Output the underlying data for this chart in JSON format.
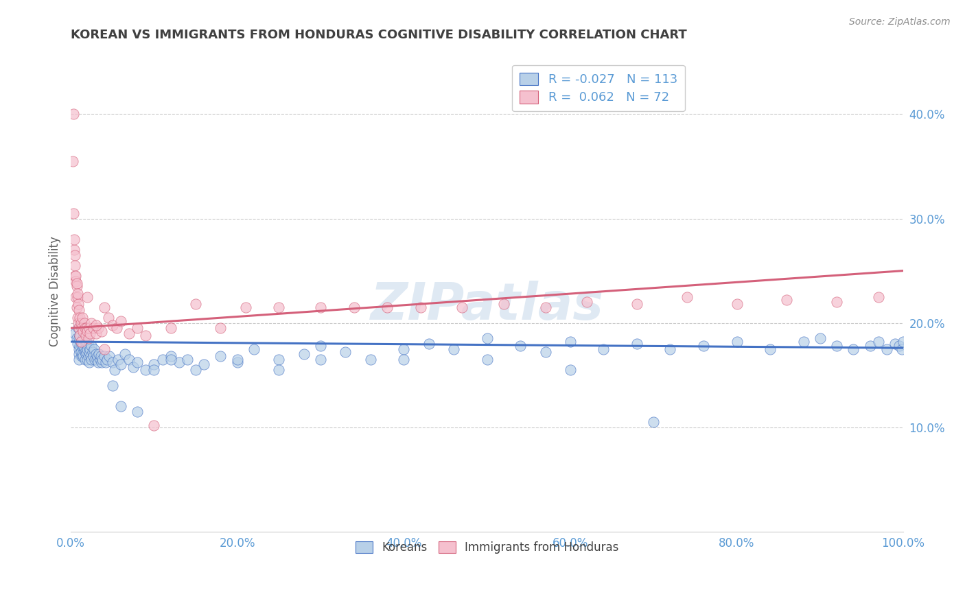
{
  "title": "KOREAN VS IMMIGRANTS FROM HONDURAS COGNITIVE DISABILITY CORRELATION CHART",
  "source": "Source: ZipAtlas.com",
  "ylabel": "Cognitive Disability",
  "watermark": "ZIPatlas",
  "legend_blue_R": "-0.027",
  "legend_blue_N": "113",
  "legend_pink_R": "0.062",
  "legend_pink_N": "72",
  "blue_scatter_color": "#b8d0e8",
  "pink_scatter_color": "#f5c0ce",
  "blue_line_color": "#4472c4",
  "pink_line_color": "#d4607a",
  "axis_tick_color": "#5b9bd5",
  "title_color": "#404040",
  "background_color": "#ffffff",
  "grid_color": "#cccccc",
  "xlim": [
    0.0,
    1.0
  ],
  "ylim": [
    0.0,
    0.46
  ],
  "xticks": [
    0.0,
    0.2,
    0.4,
    0.6,
    0.8,
    1.0
  ],
  "xticklabels": [
    "0.0%",
    "20.0%",
    "40.0%",
    "60.0%",
    "80.0%",
    "100.0%"
  ],
  "yticks": [
    0.1,
    0.2,
    0.3,
    0.4
  ],
  "yticklabels": [
    "10.0%",
    "20.0%",
    "30.0%",
    "40.0%"
  ],
  "blue_x": [
    0.005,
    0.007,
    0.008,
    0.009,
    0.01,
    0.01,
    0.01,
    0.01,
    0.011,
    0.011,
    0.012,
    0.012,
    0.013,
    0.013,
    0.014,
    0.014,
    0.015,
    0.015,
    0.015,
    0.016,
    0.017,
    0.017,
    0.018,
    0.018,
    0.019,
    0.019,
    0.02,
    0.02,
    0.021,
    0.021,
    0.022,
    0.022,
    0.023,
    0.024,
    0.025,
    0.025,
    0.026,
    0.027,
    0.028,
    0.029,
    0.03,
    0.031,
    0.032,
    0.033,
    0.034,
    0.035,
    0.036,
    0.037,
    0.038,
    0.04,
    0.042,
    0.044,
    0.046,
    0.05,
    0.053,
    0.057,
    0.06,
    0.065,
    0.07,
    0.075,
    0.08,
    0.09,
    0.1,
    0.11,
    0.12,
    0.13,
    0.14,
    0.16,
    0.18,
    0.2,
    0.22,
    0.25,
    0.28,
    0.3,
    0.33,
    0.36,
    0.4,
    0.43,
    0.46,
    0.5,
    0.54,
    0.57,
    0.6,
    0.64,
    0.68,
    0.72,
    0.76,
    0.8,
    0.84,
    0.88,
    0.9,
    0.92,
    0.94,
    0.96,
    0.97,
    0.98,
    0.99,
    0.995,
    0.998,
    1.0,
    0.05,
    0.06,
    0.08,
    0.1,
    0.12,
    0.15,
    0.2,
    0.25,
    0.3,
    0.4,
    0.5,
    0.6,
    0.7
  ],
  "blue_y": [
    0.19,
    0.185,
    0.18,
    0.195,
    0.175,
    0.185,
    0.17,
    0.165,
    0.188,
    0.178,
    0.182,
    0.172,
    0.178,
    0.168,
    0.18,
    0.17,
    0.178,
    0.168,
    0.185,
    0.175,
    0.172,
    0.165,
    0.18,
    0.17,
    0.182,
    0.172,
    0.175,
    0.165,
    0.178,
    0.168,
    0.172,
    0.162,
    0.175,
    0.168,
    0.178,
    0.165,
    0.172,
    0.168,
    0.175,
    0.165,
    0.17,
    0.165,
    0.168,
    0.162,
    0.17,
    0.165,
    0.168,
    0.162,
    0.165,
    0.168,
    0.162,
    0.165,
    0.168,
    0.162,
    0.155,
    0.165,
    0.16,
    0.17,
    0.165,
    0.158,
    0.162,
    0.155,
    0.16,
    0.165,
    0.168,
    0.162,
    0.165,
    0.16,
    0.168,
    0.162,
    0.175,
    0.165,
    0.17,
    0.178,
    0.172,
    0.165,
    0.175,
    0.18,
    0.175,
    0.185,
    0.178,
    0.172,
    0.182,
    0.175,
    0.18,
    0.175,
    0.178,
    0.182,
    0.175,
    0.182,
    0.185,
    0.178,
    0.175,
    0.178,
    0.182,
    0.175,
    0.18,
    0.178,
    0.175,
    0.182,
    0.14,
    0.12,
    0.115,
    0.155,
    0.165,
    0.155,
    0.165,
    0.155,
    0.165,
    0.165,
    0.165,
    0.155,
    0.105
  ],
  "pink_x": [
    0.003,
    0.004,
    0.005,
    0.005,
    0.006,
    0.006,
    0.007,
    0.007,
    0.008,
    0.008,
    0.009,
    0.009,
    0.01,
    0.01,
    0.011,
    0.011,
    0.012,
    0.012,
    0.013,
    0.014,
    0.015,
    0.016,
    0.017,
    0.018,
    0.019,
    0.02,
    0.021,
    0.022,
    0.023,
    0.025,
    0.027,
    0.03,
    0.033,
    0.037,
    0.04,
    0.045,
    0.05,
    0.055,
    0.06,
    0.07,
    0.08,
    0.09,
    0.1,
    0.12,
    0.15,
    0.18,
    0.21,
    0.25,
    0.3,
    0.34,
    0.38,
    0.42,
    0.47,
    0.52,
    0.57,
    0.62,
    0.68,
    0.74,
    0.8,
    0.86,
    0.92,
    0.97,
    0.002,
    0.003,
    0.004,
    0.005,
    0.006,
    0.007,
    0.008,
    0.02,
    0.03,
    0.04
  ],
  "pink_y": [
    0.4,
    0.27,
    0.265,
    0.245,
    0.24,
    0.225,
    0.235,
    0.215,
    0.225,
    0.205,
    0.218,
    0.2,
    0.212,
    0.195,
    0.205,
    0.188,
    0.2,
    0.182,
    0.195,
    0.205,
    0.192,
    0.2,
    0.195,
    0.188,
    0.195,
    0.192,
    0.185,
    0.195,
    0.19,
    0.2,
    0.195,
    0.19,
    0.195,
    0.192,
    0.215,
    0.205,
    0.198,
    0.195,
    0.202,
    0.19,
    0.195,
    0.188,
    0.102,
    0.195,
    0.218,
    0.195,
    0.215,
    0.215,
    0.215,
    0.215,
    0.215,
    0.215,
    0.215,
    0.218,
    0.215,
    0.22,
    0.218,
    0.225,
    0.218,
    0.222,
    0.22,
    0.225,
    0.355,
    0.305,
    0.28,
    0.255,
    0.245,
    0.238,
    0.228,
    0.225,
    0.198,
    0.175
  ],
  "blue_trendline_x": [
    0.0,
    1.0
  ],
  "blue_trendline_y": [
    0.182,
    0.176
  ],
  "pink_trendline_x": [
    0.0,
    1.0
  ],
  "pink_trendline_y": [
    0.195,
    0.25
  ]
}
